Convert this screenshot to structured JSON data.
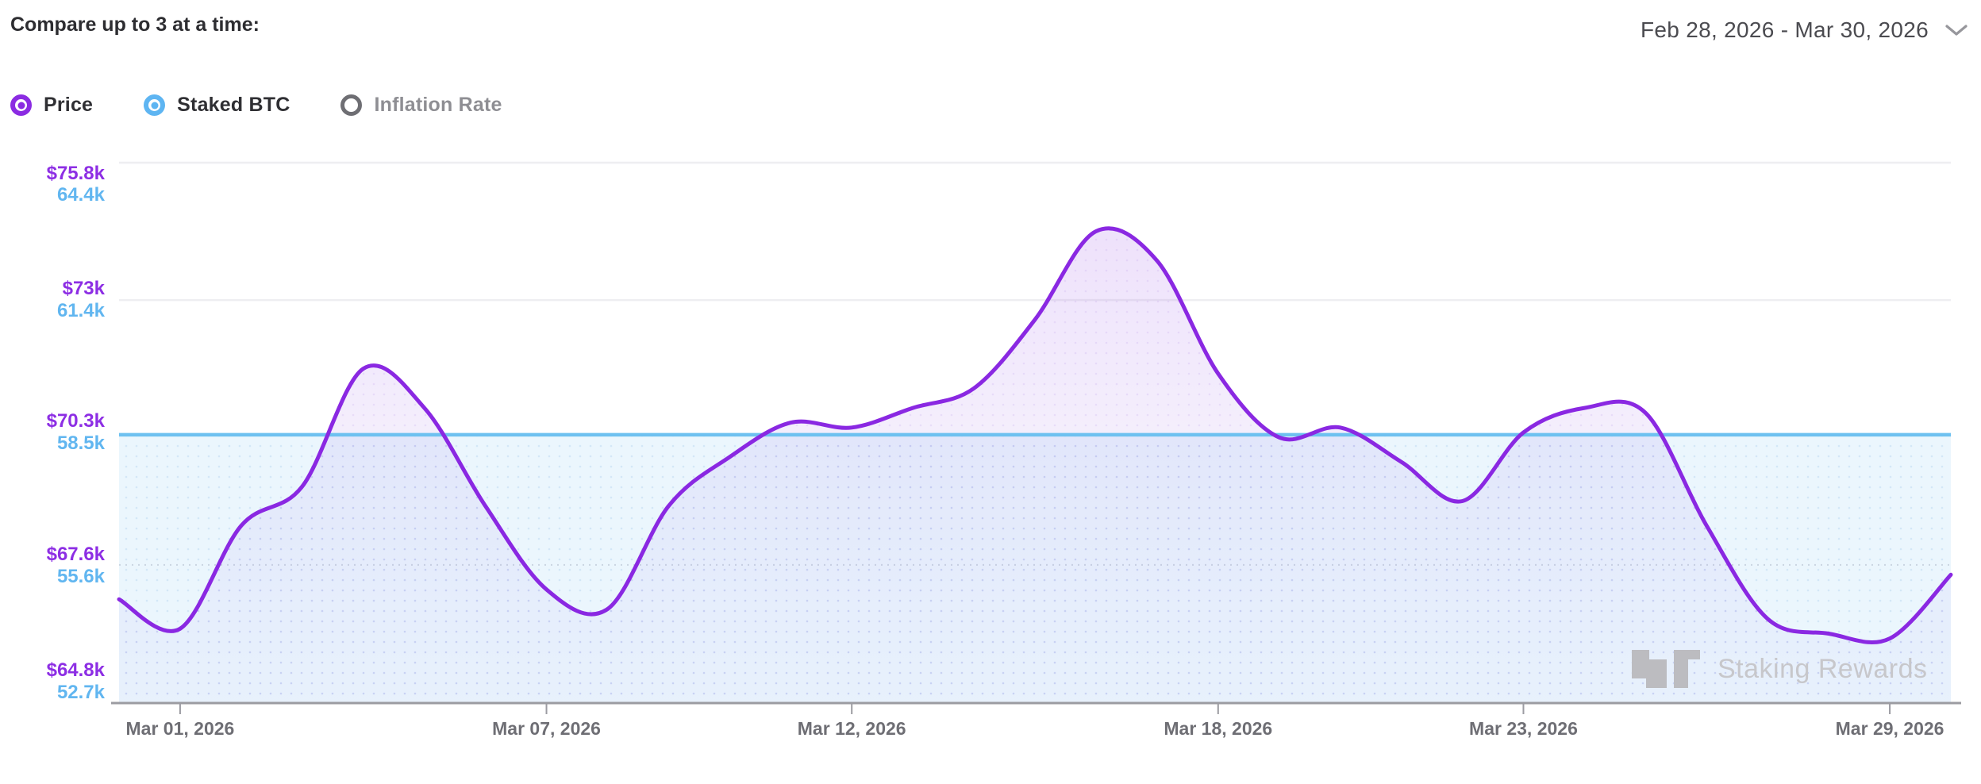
{
  "header": {
    "compare_label": "Compare up to 3 at a time:",
    "date_range": "Feb 28, 2026 - Mar 30, 2026"
  },
  "legend": {
    "items": [
      {
        "id": "price",
        "label": "Price",
        "selected": true,
        "color": "#8b2be2",
        "label_color": "#2f2f33"
      },
      {
        "id": "staked-btc",
        "label": "Staked BTC",
        "selected": true,
        "color": "#5eb5f2",
        "label_color": "#2f2f33"
      },
      {
        "id": "inflation-rate",
        "label": "Inflation Rate",
        "selected": false,
        "color": "#6e6e73",
        "label_color": "#8e8e93"
      }
    ]
  },
  "watermark": {
    "text": "Staking Rewards"
  },
  "chart_data": {
    "type": "line",
    "title": "",
    "x_unit": "date",
    "grid": "horizontal",
    "legend_position": "top-left",
    "x": [
      "Feb 28, 2026",
      "Mar 01, 2026",
      "Mar 02, 2026",
      "Mar 03, 2026",
      "Mar 04, 2026",
      "Mar 05, 2026",
      "Mar 06, 2026",
      "Mar 07, 2026",
      "Mar 08, 2026",
      "Mar 09, 2026",
      "Mar 10, 2026",
      "Mar 11, 2026",
      "Mar 12, 2026",
      "Mar 13, 2026",
      "Mar 14, 2026",
      "Mar 15, 2026",
      "Mar 16, 2026",
      "Mar 17, 2026",
      "Mar 18, 2026",
      "Mar 19, 2026",
      "Mar 20, 2026",
      "Mar 21, 2026",
      "Mar 22, 2026",
      "Mar 23, 2026",
      "Mar 24, 2026",
      "Mar 25, 2026",
      "Mar 26, 2026",
      "Mar 27, 2026",
      "Mar 28, 2026",
      "Mar 29, 2026",
      "Mar 30, 2026"
    ],
    "series": [
      {
        "name": "Price",
        "axis": "price",
        "unit": "USD thousands",
        "color": "#8a28e2",
        "values": [
          66.9,
          66.3,
          68.4,
          69.2,
          71.6,
          70.8,
          68.8,
          67.1,
          66.7,
          68.8,
          69.8,
          70.5,
          70.4,
          70.8,
          71.2,
          72.6,
          74.4,
          73.8,
          71.5,
          70.2,
          70.4,
          69.7,
          68.9,
          70.3,
          70.8,
          70.7,
          68.4,
          66.5,
          66.2,
          66.1,
          67.4
        ]
      },
      {
        "name": "Staked BTC",
        "axis": "staked",
        "unit": "thousand BTC",
        "color": "#6ec1f0",
        "values": [
          58.5,
          58.5,
          58.5,
          58.5,
          58.5,
          58.5,
          58.5,
          58.5,
          58.5,
          58.5,
          58.5,
          58.5,
          58.5,
          58.5,
          58.5,
          58.5,
          58.5,
          58.5,
          58.5,
          58.5,
          58.5,
          58.5,
          58.5,
          58.5,
          58.5,
          58.5,
          58.5,
          58.5,
          58.5,
          58.5,
          58.5
        ]
      }
    ],
    "y_axis_price": {
      "min": 64.8,
      "max": 75.8,
      "ticks": [
        {
          "label": "$75.8k",
          "value": 75.8
        },
        {
          "label": "$73k",
          "value": 73.0
        },
        {
          "label": "$70.3k",
          "value": 70.3
        },
        {
          "label": "$67.6k",
          "value": 67.6
        },
        {
          "label": "$64.8k",
          "value": 64.8
        }
      ]
    },
    "y_axis_staked": {
      "min": 52.7,
      "max": 64.4,
      "ticks": [
        {
          "label": "64.4k",
          "value": 64.4
        },
        {
          "label": "61.4k",
          "value": 61.4
        },
        {
          "label": "58.5k",
          "value": 58.5
        },
        {
          "label": "55.6k",
          "value": 55.6
        },
        {
          "label": "52.7k",
          "value": 52.7
        }
      ]
    },
    "x_ticks": [
      {
        "label": "Mar 01, 2026",
        "index": 1
      },
      {
        "label": "Mar 07, 2026",
        "index": 7
      },
      {
        "label": "Mar 12, 2026",
        "index": 12
      },
      {
        "label": "Mar 18, 2026",
        "index": 18
      },
      {
        "label": "Mar 23, 2026",
        "index": 23
      },
      {
        "label": "Mar 29, 2026",
        "index": 29
      }
    ]
  }
}
